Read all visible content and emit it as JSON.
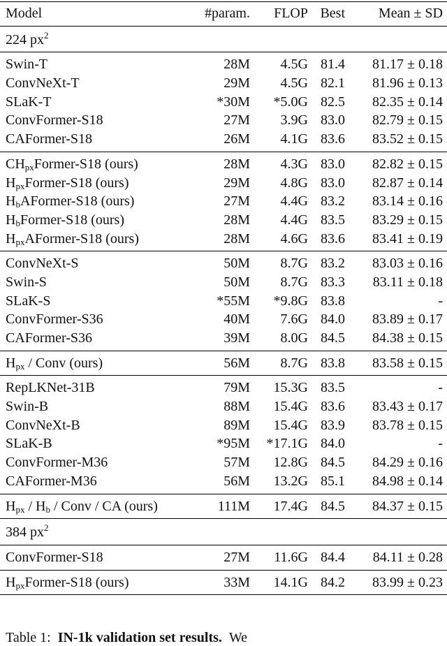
{
  "header": [
    "Model",
    "#param.",
    "FLOP",
    "Best",
    "Mean ± SD"
  ],
  "sections": [
    {
      "label": {
        "text": "224 px",
        "sup": "2"
      },
      "groups": [
        [
          {
            "model": [
              "Swin-T"
            ],
            "params": "28M",
            "flop": "4.5G",
            "best": "81.4",
            "mean": "81.17 ± 0.18"
          },
          {
            "model": [
              "ConvNeXt-T"
            ],
            "params": "29M",
            "flop": "4.5G",
            "best": "82.1",
            "mean": "81.96 ± 0.13"
          },
          {
            "model": [
              "SLaK-T"
            ],
            "params": "*30M",
            "flop": "*5.0G",
            "best": "82.5",
            "mean": "82.35 ± 0.14"
          },
          {
            "model": [
              "ConvFormer-S18"
            ],
            "params": "27M",
            "flop": "3.9G",
            "best": "83.0",
            "mean": "82.79 ± 0.15"
          },
          {
            "model": [
              "CAFormer-S18"
            ],
            "params": "26M",
            "flop": "4.1G",
            "best": "83.6",
            "mean": "83.52 ± 0.15"
          }
        ],
        [
          {
            "model": [
              "CH",
              "px",
              "Former-S18 (ours)"
            ],
            "params": "28M",
            "flop": "4.3G",
            "best": "83.0",
            "mean": "82.82 ± 0.15"
          },
          {
            "model": [
              "H",
              "px",
              "Former-S18 (ours)"
            ],
            "params": "29M",
            "flop": "4.8G",
            "best": "83.0",
            "mean": "82.87 ± 0.14"
          },
          {
            "model": [
              "H",
              "b",
              "AFormer-S18 (ours)"
            ],
            "params": "27M",
            "flop": "4.4G",
            "best": "83.2",
            "mean": "83.14 ± 0.16"
          },
          {
            "model": [
              "H",
              "b",
              "Former-S18 (ours)"
            ],
            "params": "28M",
            "flop": "4.4G",
            "best": "83.5",
            "mean": "83.29 ± 0.15"
          },
          {
            "model": [
              "H",
              "px",
              "AFormer-S18 (ours)"
            ],
            "params": "28M",
            "flop": "4.6G",
            "best": "83.6",
            "mean": "83.41 ± 0.19"
          }
        ],
        [
          {
            "model": [
              "ConvNeXt-S"
            ],
            "params": "50M",
            "flop": "8.7G",
            "best": "83.2",
            "mean": "83.03 ± 0.16"
          },
          {
            "model": [
              "Swin-S"
            ],
            "params": "50M",
            "flop": "8.7G",
            "best": "83.3",
            "mean": "83.11 ± 0.18"
          },
          {
            "model": [
              "SLaK-S"
            ],
            "params": "*55M",
            "flop": "*9.8G",
            "best": "83.8",
            "mean": "-"
          },
          {
            "model": [
              "ConvFormer-S36"
            ],
            "params": "40M",
            "flop": "7.6G",
            "best": "84.0",
            "mean": "83.89 ± 0.17"
          },
          {
            "model": [
              "CAFormer-S36"
            ],
            "params": "39M",
            "flop": "8.0G",
            "best": "84.5",
            "mean": "84.38 ± 0.15"
          }
        ],
        [
          {
            "model": [
              "H",
              "px",
              " / Conv (ours)"
            ],
            "params": "56M",
            "flop": "8.7G",
            "best": "83.8",
            "mean": "83.58 ± 0.15"
          }
        ],
        [
          {
            "model": [
              "RepLKNet-31B"
            ],
            "params": "79M",
            "flop": "15.3G",
            "best": "83.5",
            "mean": "-"
          },
          {
            "model": [
              "Swin-B"
            ],
            "params": "88M",
            "flop": "15.4G",
            "best": "83.6",
            "mean": "83.43 ± 0.17"
          },
          {
            "model": [
              "ConvNeXt-B"
            ],
            "params": "89M",
            "flop": "15.4G",
            "best": "83.9",
            "mean": "83.78 ± 0.15"
          },
          {
            "model": [
              "SLaK-B"
            ],
            "params": "*95M",
            "flop": "*17.1G",
            "best": "84.0",
            "mean": "-"
          },
          {
            "model": [
              "ConvFormer-M36"
            ],
            "params": "57M",
            "flop": "12.8G",
            "best": "84.5",
            "mean": "84.29 ± 0.16"
          },
          {
            "model": [
              "CAFormer-M36"
            ],
            "params": "56M",
            "flop": "13.2G",
            "best": "85.1",
            "mean": "84.98 ± 0.14"
          }
        ],
        [
          {
            "model": [
              "H",
              "px",
              " / H",
              "b",
              " / Conv / CA (ours)"
            ],
            "params": "111M",
            "flop": "17.4G",
            "best": "84.5",
            "mean": "84.37 ± 0.15"
          }
        ]
      ]
    },
    {
      "label": {
        "text": "384 px",
        "sup": "2"
      },
      "groups": [
        [
          {
            "model": [
              "ConvFormer-S18"
            ],
            "params": "27M",
            "flop": "11.6G",
            "best": "84.4",
            "mean": "84.11 ± 0.28"
          }
        ],
        [
          {
            "model": [
              "H",
              "px",
              "Former-S18 (ours)"
            ],
            "params": "33M",
            "flop": "14.1G",
            "best": "84.2",
            "mean": "83.99 ± 0.23"
          }
        ]
      ]
    }
  ],
  "caption": {
    "label": "Table 1:",
    "bold": "IN-1k validation set results.",
    "text": "We"
  }
}
